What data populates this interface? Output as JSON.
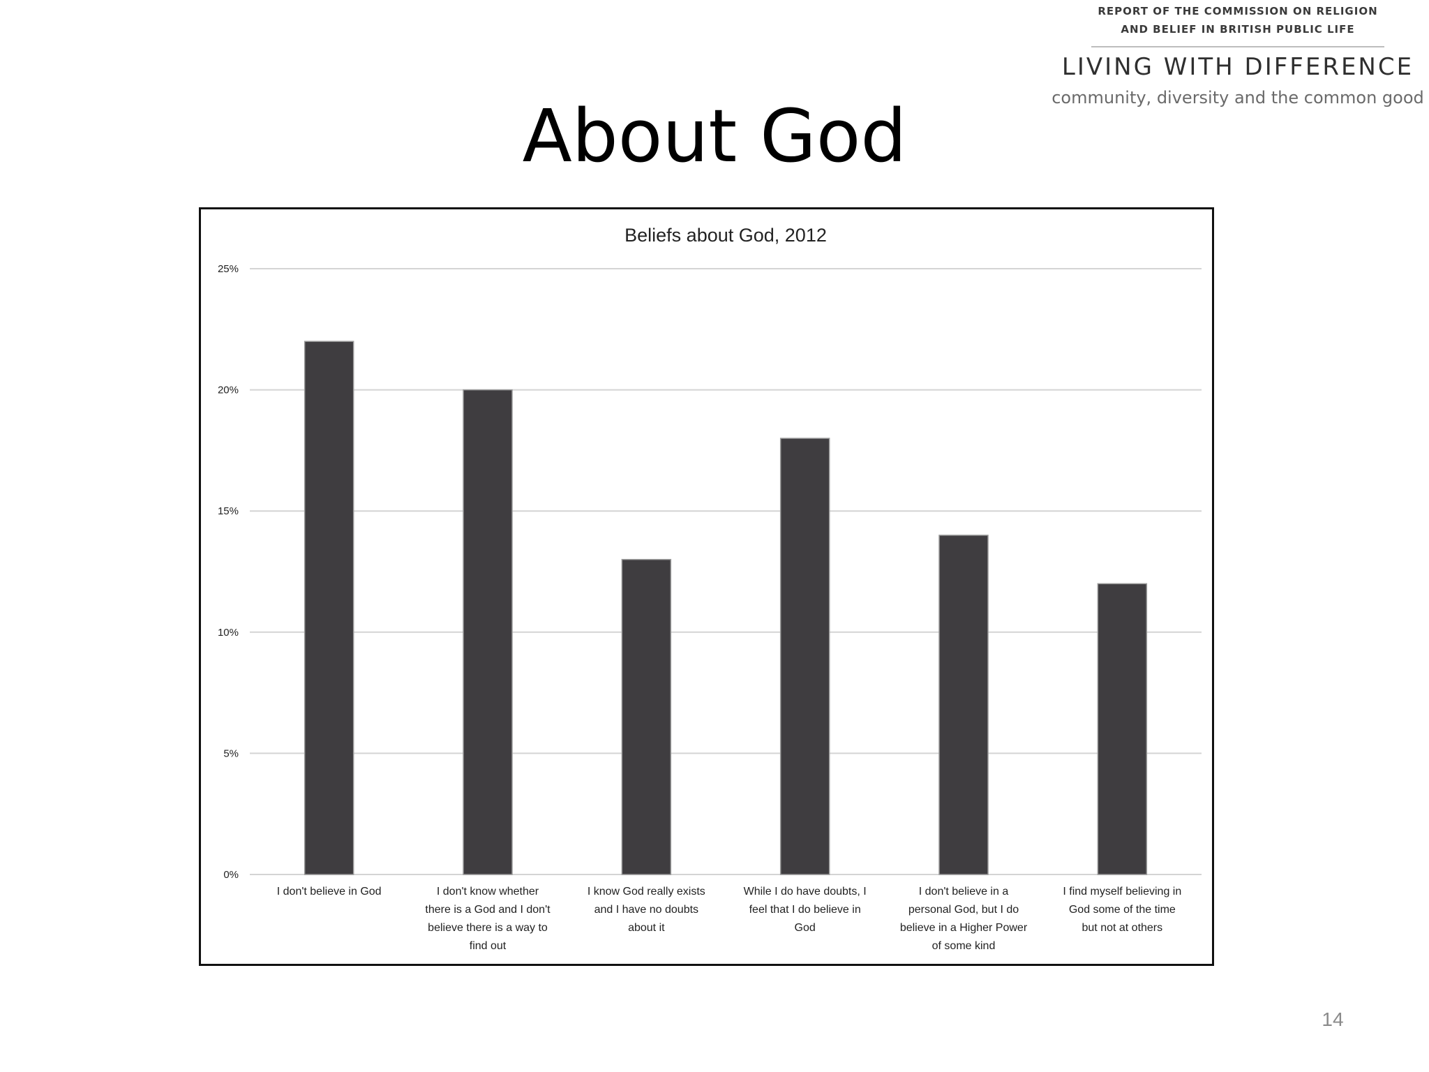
{
  "logo": {
    "report_line1": "REPORT OF THE COMMISSION ON RELIGION",
    "report_line2": "AND BELIEF IN BRITISH PUBLIC LIFE",
    "main": "LIVING WITH DIFFERENCE",
    "tagline": "community, diversity and the common good"
  },
  "slide": {
    "title": "About God",
    "page_number": "14"
  },
  "colors": {
    "bar": "#3f3d40",
    "grid": "#d4d4d4",
    "text": "#222222"
  },
  "chart_data": {
    "type": "bar",
    "title": "Beliefs about God, 2012",
    "xlabel": "",
    "ylabel": "",
    "ylim": [
      0,
      25
    ],
    "yticks": [
      0,
      5,
      10,
      15,
      20,
      25
    ],
    "ytick_labels": [
      "0%",
      "5%",
      "10%",
      "15%",
      "20%",
      "25%"
    ],
    "grid": true,
    "categories": [
      [
        "I don't believe in God"
      ],
      [
        "I don't know whether",
        "there is a God and I don't",
        "believe there is a way to",
        "find out"
      ],
      [
        "I know God really exists",
        "and I have no doubts",
        "about it"
      ],
      [
        "While I do have doubts, I",
        "feel that I do believe in",
        "God"
      ],
      [
        "I don't believe in a",
        "personal God, but I do",
        "believe in a Higher Power",
        "of some kind"
      ],
      [
        "I find myself believing in",
        "God some of the time",
        "but not at others"
      ]
    ],
    "values": [
      22,
      20,
      13,
      18,
      14,
      12
    ]
  }
}
